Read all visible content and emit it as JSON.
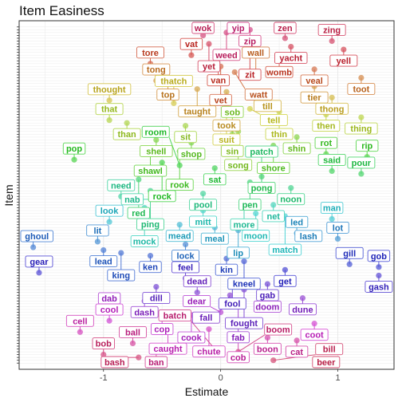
{
  "chart_data": {
    "type": "scatter",
    "title": "Item Easiness",
    "xlabel": "Estimate",
    "ylabel": "Item",
    "xlim": [
      -1.72,
      1.48
    ],
    "x_ticks": [
      -1,
      0,
      1
    ],
    "x_tick_labels": [
      "-1",
      "0",
      "1"
    ],
    "y_tick_labels_shown": false,
    "legend": "none",
    "grid": true,
    "points": [
      {
        "label": "yip",
        "x": 0.15
      },
      {
        "label": "zip",
        "x": 0.25
      },
      {
        "label": "weed",
        "x": 0.05
      },
      {
        "label": "wok",
        "x": -0.15
      },
      {
        "label": "zen",
        "x": 0.55
      },
      {
        "label": "zing",
        "x": 0.95
      },
      {
        "label": "yet",
        "x": -0.1
      },
      {
        "label": "yacht",
        "x": 0.6
      },
      {
        "label": "yell",
        "x": 1.05
      },
      {
        "label": "zit",
        "x": 0.25
      },
      {
        "label": "vat",
        "x": -0.25
      },
      {
        "label": "van",
        "x": -0.02
      },
      {
        "label": "womb",
        "x": 0.5
      },
      {
        "label": "tore",
        "x": -0.6
      },
      {
        "label": "vet",
        "x": 0.0
      },
      {
        "label": "veal",
        "x": 0.8
      },
      {
        "label": "watt",
        "x": 0.12
      },
      {
        "label": "wall",
        "x": 0.3
      },
      {
        "label": "toot",
        "x": 1.2
      },
      {
        "label": "tong",
        "x": -0.55
      },
      {
        "label": "top",
        "x": -0.45
      },
      {
        "label": "tier",
        "x": 0.8
      },
      {
        "label": "taught",
        "x": -0.2
      },
      {
        "label": "took",
        "x": 0.05
      },
      {
        "label": "till",
        "x": 0.4
      },
      {
        "label": "thong",
        "x": 0.95
      },
      {
        "label": "thought",
        "x": -0.95
      },
      {
        "label": "thatch",
        "x": -0.4
      },
      {
        "label": "suit",
        "x": 0.05
      },
      {
        "label": "tell",
        "x": 0.25
      },
      {
        "label": "thin",
        "x": 0.5
      },
      {
        "label": "then",
        "x": 0.9
      },
      {
        "label": "thing",
        "x": 1.2
      },
      {
        "label": "that",
        "x": -0.95
      },
      {
        "label": "than",
        "x": -0.8
      },
      {
        "label": "sit",
        "x": -0.3
      },
      {
        "label": "sin",
        "x": 0.1
      },
      {
        "label": "song",
        "x": 0.15
      },
      {
        "label": "sob",
        "x": 0.1
      },
      {
        "label": "shin",
        "x": 0.65
      },
      {
        "label": "shell",
        "x": -0.55
      },
      {
        "label": "shop",
        "x": -0.25
      },
      {
        "label": "shore",
        "x": 0.45
      },
      {
        "label": "shawl",
        "x": -0.6
      },
      {
        "label": "rook",
        "x": -0.35
      },
      {
        "label": "rot",
        "x": 0.9
      },
      {
        "label": "rip",
        "x": 1.25
      },
      {
        "label": "pop",
        "x": -1.25
      },
      {
        "label": "rock",
        "x": -0.5
      },
      {
        "label": "room",
        "x": -0.35
      },
      {
        "label": "sat",
        "x": -0.05
      },
      {
        "label": "said",
        "x": 0.95
      },
      {
        "label": "pour",
        "x": 1.2
      },
      {
        "label": "pong",
        "x": 0.35
      },
      {
        "label": "red",
        "x": -0.7
      },
      {
        "label": "pen",
        "x": 0.25
      },
      {
        "label": "patch",
        "x": 0.35
      },
      {
        "label": "noon",
        "x": 0.6
      },
      {
        "label": "ping",
        "x": -0.6
      },
      {
        "label": "pool",
        "x": -0.15
      },
      {
        "label": "need",
        "x": -0.85
      },
      {
        "label": "nab",
        "x": -0.55
      },
      {
        "label": "more",
        "x": 0.2
      },
      {
        "label": "net",
        "x": 0.45
      },
      {
        "label": "mock",
        "x": -0.65
      },
      {
        "label": "mitt",
        "x": -0.15
      },
      {
        "label": "moon",
        "x": 0.3
      },
      {
        "label": "match",
        "x": 0.55
      },
      {
        "label": "man",
        "x": 0.95
      },
      {
        "label": "look",
        "x": -0.95
      },
      {
        "label": "mead",
        "x": -0.35
      },
      {
        "label": "meal",
        "x": -0.05
      },
      {
        "label": "lip",
        "x": 0.15
      },
      {
        "label": "led",
        "x": 0.65
      },
      {
        "label": "lash",
        "x": 0.75
      },
      {
        "label": "lot",
        "x": 1.0
      },
      {
        "label": "lit",
        "x": -1.05
      },
      {
        "label": "lock",
        "x": -0.3
      },
      {
        "label": "ghoul",
        "x": -1.6
      },
      {
        "label": "lead",
        "x": -1.0
      },
      {
        "label": "king",
        "x": -0.85
      },
      {
        "label": "ken",
        "x": -0.6
      },
      {
        "label": "kin",
        "x": 0.05
      },
      {
        "label": "kneel",
        "x": 0.2
      },
      {
        "label": "gill",
        "x": 1.1
      },
      {
        "label": "gob",
        "x": 1.35
      },
      {
        "label": "get",
        "x": 0.55
      },
      {
        "label": "gear",
        "x": -1.55
      },
      {
        "label": "gash",
        "x": 1.35
      },
      {
        "label": "feel",
        "x": -0.3
      },
      {
        "label": "fool",
        "x": 0.1
      },
      {
        "label": "gab",
        "x": 0.4
      },
      {
        "label": "dill",
        "x": -0.55
      },
      {
        "label": "fought",
        "x": 0.2
      },
      {
        "label": "dead",
        "x": -0.2
      },
      {
        "label": "fall",
        "x": 0.08
      },
      {
        "label": "dune",
        "x": 0.7
      },
      {
        "label": "dash",
        "x": -0.65
      },
      {
        "label": "fab",
        "x": 0.15
      },
      {
        "label": "doom",
        "x": 0.4
      },
      {
        "label": "dab",
        "x": -0.95
      },
      {
        "label": "dear",
        "x": 0.0
      },
      {
        "label": "cook",
        "x": -0.25
      },
      {
        "label": "cop",
        "x": -0.5
      },
      {
        "label": "cool",
        "x": -0.95
      },
      {
        "label": "coot",
        "x": 0.8
      },
      {
        "label": "caught",
        "x": -0.45
      },
      {
        "label": "chute",
        "x": -0.1
      },
      {
        "label": "cell",
        "x": -1.2
      },
      {
        "label": "cob",
        "x": 0.15
      },
      {
        "label": "boon",
        "x": 0.4
      },
      {
        "label": "cat",
        "x": 0.65
      },
      {
        "label": "ball",
        "x": -0.75
      },
      {
        "label": "ban",
        "x": -0.55
      },
      {
        "label": "batch",
        "x": -0.05
      },
      {
        "label": "boom",
        "x": 0.15
      },
      {
        "label": "bob",
        "x": -1.0
      },
      {
        "label": "bash",
        "x": -0.7
      },
      {
        "label": "bill",
        "x": 0.45
      },
      {
        "label": "beer",
        "x": 0.9
      }
    ]
  }
}
